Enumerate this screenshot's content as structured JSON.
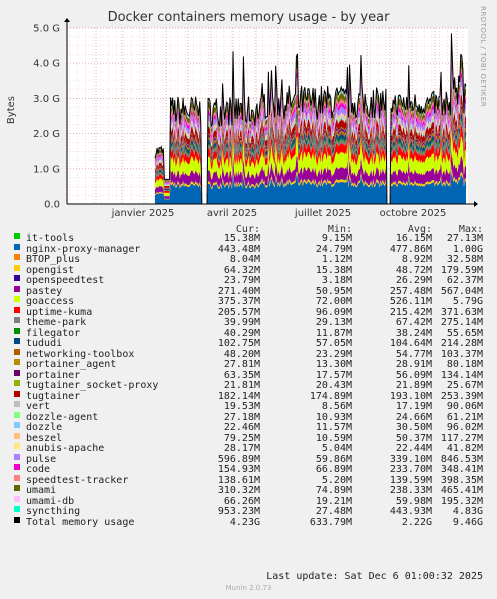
{
  "app": {
    "side_label": "RRDTOOL / TOBI OETIKER",
    "footer": "Munin 2.0.73"
  },
  "legend_headers": {
    "cur": "Cur:",
    "min": "Min:",
    "avg": "Avg:",
    "max": "Max:"
  },
  "last_update": "Last update: Sat Dec  6 01:00:32 2025",
  "chart_data": {
    "type": "area",
    "stacked": true,
    "title": "Docker containers memory usage - by year",
    "ylabel": "Bytes",
    "ylim": [
      0,
      5
    ],
    "y_unit": "G",
    "y_ticks": [
      "0.0",
      "1.0 G",
      "2.0 G",
      "3.0 G",
      "4.0 G",
      "5.0 G"
    ],
    "x_ticks": [
      "janvier 2025",
      "avril 2025",
      "juillet 2025",
      "octobre 2025"
    ],
    "grid": true,
    "legend_placement": "bottom",
    "series": [
      {
        "name": "it-tools",
        "color": "#00cc00",
        "cur": "15.38M",
        "min": "9.15M",
        "avg": "16.15M",
        "max": "27.13M",
        "share": 0.003
      },
      {
        "name": "nginx-proxy-manager",
        "color": "#0066b3",
        "cur": "443.48M",
        "min": "24.79M",
        "avg": "477.86M",
        "max": "1.00G",
        "share": 0.2
      },
      {
        "name": "BTOP_plus",
        "color": "#ff8000",
        "cur": "8.04M",
        "min": "1.12M",
        "avg": "8.92M",
        "max": "32.58M",
        "share": 0.004
      },
      {
        "name": "opengist",
        "color": "#ffcc00",
        "cur": "64.32M",
        "min": "15.38M",
        "avg": "48.72M",
        "max": "179.59M",
        "share": 0.02
      },
      {
        "name": "openspeedtest",
        "color": "#330099",
        "cur": "23.79M",
        "min": "3.18M",
        "avg": "26.29M",
        "max": "62.37M",
        "share": 0.01
      },
      {
        "name": "pastey",
        "color": "#990099",
        "cur": "271.40M",
        "min": "50.95M",
        "avg": "257.48M",
        "max": "567.04M",
        "share": 0.1
      },
      {
        "name": "goaccess",
        "color": "#ccff00",
        "cur": "375.37M",
        "min": "72.00M",
        "avg": "526.11M",
        "max": "5.79G",
        "share": 0.14
      },
      {
        "name": "uptime-kuma",
        "color": "#ff0000",
        "cur": "205.57M",
        "min": "96.09M",
        "avg": "215.42M",
        "max": "371.63M",
        "share": 0.08
      },
      {
        "name": "theme-park",
        "color": "#808080",
        "cur": "39.99M",
        "min": "29.13M",
        "avg": "67.42M",
        "max": "275.14M",
        "share": 0.03
      },
      {
        "name": "filegator",
        "color": "#008f00",
        "cur": "40.29M",
        "min": "11.87M",
        "avg": "38.24M",
        "max": "55.65M",
        "share": 0.015
      },
      {
        "name": "tududi",
        "color": "#00487d",
        "cur": "102.75M",
        "min": "57.05M",
        "avg": "104.64M",
        "max": "214.28M",
        "share": 0.04
      },
      {
        "name": "networking-toolbox",
        "color": "#b35a00",
        "cur": "48.20M",
        "min": "23.29M",
        "avg": "54.77M",
        "max": "103.37M",
        "share": 0.02
      },
      {
        "name": "portainer_agent",
        "color": "#b38f00",
        "cur": "27.81M",
        "min": "13.30M",
        "avg": "28.91M",
        "max": "80.18M",
        "share": 0.01
      },
      {
        "name": "portainer",
        "color": "#6b006b",
        "cur": "63.35M",
        "min": "17.57M",
        "avg": "56.09M",
        "max": "134.14M",
        "share": 0.025
      },
      {
        "name": "tugtainer_socket-proxy",
        "color": "#8fb300",
        "cur": "21.81M",
        "min": "20.43M",
        "avg": "21.89M",
        "max": "25.67M",
        "share": 0.008
      },
      {
        "name": "tugtainer",
        "color": "#b30000",
        "cur": "182.14M",
        "min": "174.89M",
        "avg": "193.10M",
        "max": "253.39M",
        "share": 0.07
      },
      {
        "name": "vert",
        "color": "#bebebe",
        "cur": "19.53M",
        "min": "8.56M",
        "avg": "17.19M",
        "max": "90.06M",
        "share": 0.007
      },
      {
        "name": "dozzle-agent",
        "color": "#80ff80",
        "cur": "27.18M",
        "min": "10.93M",
        "avg": "24.66M",
        "max": "61.21M",
        "share": 0.01
      },
      {
        "name": "dozzle",
        "color": "#80c9ff",
        "cur": "22.46M",
        "min": "11.57M",
        "avg": "30.50M",
        "max": "96.02M",
        "share": 0.012
      },
      {
        "name": "beszel",
        "color": "#ffc080",
        "cur": "79.25M",
        "min": "10.59M",
        "avg": "50.37M",
        "max": "117.27M",
        "share": 0.02
      },
      {
        "name": "anubis-apache",
        "color": "#ffe680",
        "cur": "28.17M",
        "min": "5.04M",
        "avg": "22.44M",
        "max": "41.82M",
        "share": 0.009
      },
      {
        "name": "pulse",
        "color": "#aa80ff",
        "cur": "596.89M",
        "min": "59.86M",
        "avg": "339.10M",
        "max": "846.53M",
        "share": 0.06
      },
      {
        "name": "code",
        "color": "#ee00cc",
        "cur": "154.93M",
        "min": "66.89M",
        "avg": "233.70M",
        "max": "348.41M",
        "share": 0.04
      },
      {
        "name": "speedtest-tracker",
        "color": "#ff8080",
        "cur": "138.61M",
        "min": "5.20M",
        "avg": "139.59M",
        "max": "398.35M",
        "share": 0.03
      },
      {
        "name": "umami",
        "color": "#666600",
        "cur": "310.32M",
        "min": "74.89M",
        "avg": "238.33M",
        "max": "465.41M",
        "share": 0.06
      },
      {
        "name": "umami-db",
        "color": "#ffbfff",
        "cur": "66.26M",
        "min": "19.21M",
        "avg": "59.98M",
        "max": "195.32M",
        "share": 0.015
      },
      {
        "name": "syncthing",
        "color": "#00ffcc",
        "cur": "953.23M",
        "min": "27.48M",
        "avg": "443.93M",
        "max": "4.83G",
        "share": 0.02
      }
    ],
    "total": {
      "name": "Total memory usage",
      "color": "#000000",
      "cur": "4.23G",
      "min": "633.79M",
      "avg": "2.22G",
      "max": "9.46G"
    }
  }
}
